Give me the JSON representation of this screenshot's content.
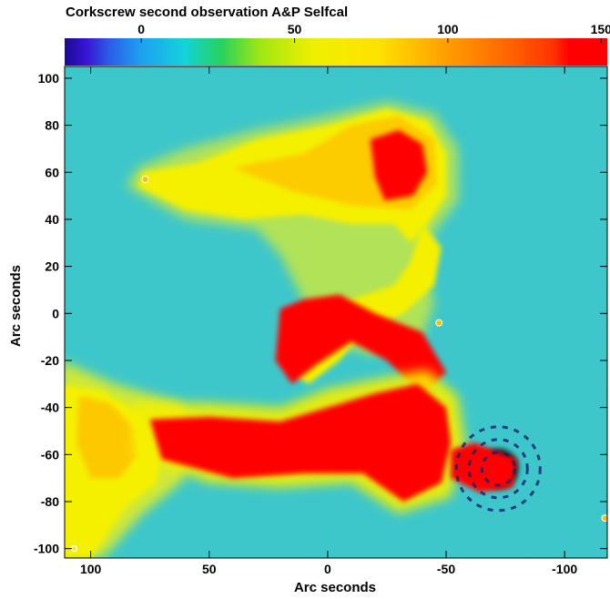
{
  "chart_data": {
    "type": "heatmap",
    "title": "Corkscrew second observation A&P Selfcal",
    "xlabel": "Arc seconds",
    "ylabel": "Arc seconds",
    "xlim": [
      111,
      -118
    ],
    "ylim": [
      -104,
      105
    ],
    "x_ticks": [
      100,
      50,
      0,
      -50,
      -100
    ],
    "x_tick_labels": [
      "100",
      "50",
      "0",
      "-50",
      "-100"
    ],
    "y_ticks": [
      100,
      80,
      60,
      40,
      20,
      0,
      -20,
      -40,
      -60,
      -80,
      -100
    ],
    "y_tick_labels": [
      "100",
      "80",
      "60",
      "40",
      "20",
      "0",
      "-20",
      "-40",
      "-60",
      "-80",
      "-100"
    ],
    "colorbar": {
      "range": [
        -25,
        152
      ],
      "ticks": [
        0,
        50,
        100,
        150
      ],
      "tick_labels": [
        "0",
        "50",
        "100",
        "150"
      ],
      "colors": [
        "#1a0a96",
        "#2828e6",
        "#1e96f0",
        "#14dcdc",
        "#28d25a",
        "#a0e614",
        "#fafa00",
        "#ffd200",
        "#ff8c00",
        "#ff4600",
        "#ff0000"
      ]
    },
    "background_color": "#3cc8c8",
    "saturated_color": "#ff0000",
    "structures": [
      {
        "name": "upper lobe",
        "x_range": [
          78,
          -45
        ],
        "y_range": [
          30,
          86
        ],
        "level": "yellow-orange"
      },
      {
        "name": "upper lobe hotspot",
        "x_range": [
          -20,
          -40
        ],
        "y_range": [
          48,
          76
        ],
        "level": "saturated"
      },
      {
        "name": "curved connecting jet",
        "x_range": [
          20,
          -45
        ],
        "y_range": [
          -30,
          30
        ],
        "level": "yellow-orange"
      },
      {
        "name": "lower jet",
        "x_range": [
          75,
          -55
        ],
        "y_range": [
          -70,
          -42
        ],
        "level": "saturated"
      },
      {
        "name": "core",
        "x_range": [
          -50,
          -75
        ],
        "y_range": [
          -80,
          -50
        ],
        "level": "saturated"
      },
      {
        "name": "left diffuse lobe",
        "x_range": [
          111,
          55
        ],
        "y_range": [
          -104,
          -25
        ],
        "level": "yellow"
      }
    ]
  }
}
